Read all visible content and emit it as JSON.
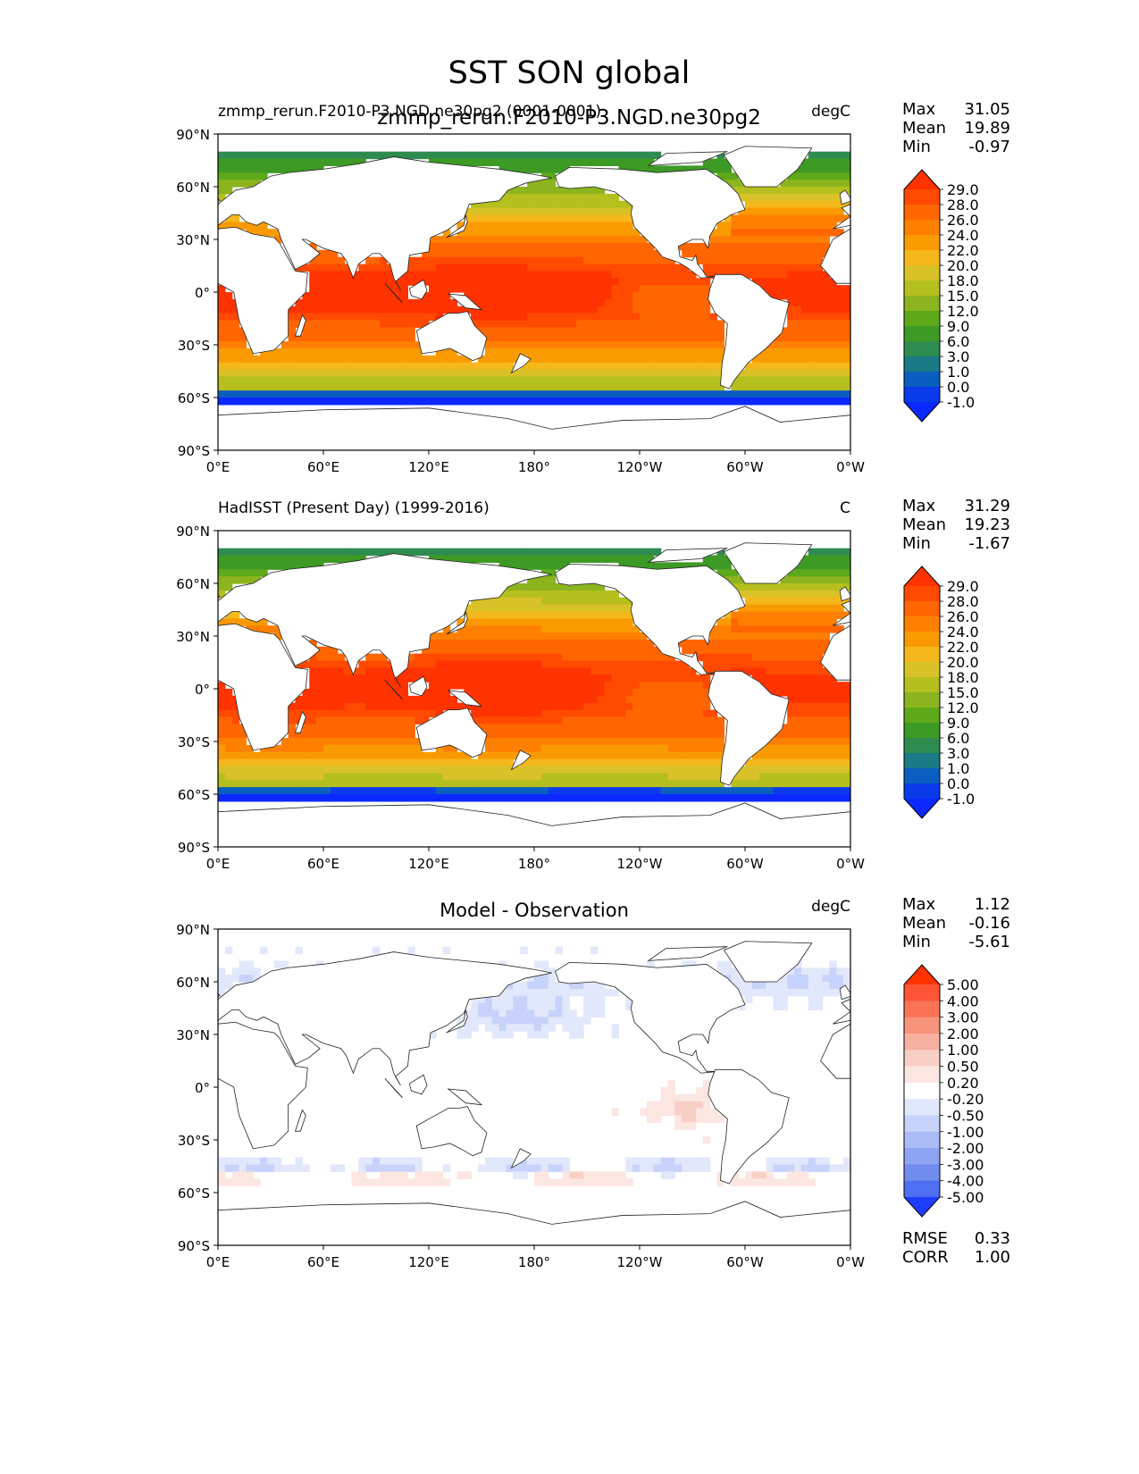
{
  "figure": {
    "title": "SST SON global",
    "overlay_title": "zmmp_rerun.F2010-P3.NGD.ne30pg2"
  },
  "axes": {
    "lat_ticks": [
      "90°N",
      "60°N",
      "30°N",
      "0°",
      "30°S",
      "60°S",
      "90°S"
    ],
    "lon_ticks": [
      "0°E",
      "60°E",
      "120°E",
      "180°",
      "120°W",
      "60°W",
      "0°W"
    ]
  },
  "chart_data": [
    {
      "type": "heatmap",
      "id": "test",
      "title_left": "zmmp_rerun.F2010-P3.NGD.ne30pg2 (0001-0001)",
      "title_center": "",
      "units": "degC",
      "stats": [
        {
          "label": "Max",
          "value": "31.05"
        },
        {
          "label": "Mean",
          "value": "19.89"
        },
        {
          "label": "Min",
          "value": "-0.97"
        }
      ],
      "colorbar": {
        "levels": [
          "29.0",
          "28.0",
          "26.0",
          "24.0",
          "22.0",
          "20.0",
          "18.0",
          "15.0",
          "12.0",
          "9.0",
          "6.0",
          "3.0",
          "1.0",
          "0.0",
          "-1.0"
        ],
        "colors": [
          "#ff3300",
          "#ff4a00",
          "#ff6600",
          "#ff8000",
          "#f99b00",
          "#f5b81c",
          "#d9c228",
          "#b5bf1e",
          "#8cb41e",
          "#5ea91a",
          "#3d9a24",
          "#2f8c50",
          "#1a7a86",
          "#0a5ebf",
          "#0a3bea",
          "#0a28ff"
        ]
      },
      "lat_range": [
        -90,
        90
      ],
      "lon_range": [
        0,
        360
      ],
      "field_kind": "sst"
    },
    {
      "type": "heatmap",
      "id": "ref",
      "title_left": "HadISST (Present Day) (1999-2016)",
      "title_center": "",
      "units": "C",
      "stats": [
        {
          "label": "Max",
          "value": "31.29"
        },
        {
          "label": "Mean",
          "value": "19.23"
        },
        {
          "label": "Min",
          "value": "-1.67"
        }
      ],
      "colorbar": {
        "levels": [
          "29.0",
          "28.0",
          "26.0",
          "24.0",
          "22.0",
          "20.0",
          "18.0",
          "15.0",
          "12.0",
          "9.0",
          "6.0",
          "3.0",
          "1.0",
          "0.0",
          "-1.0"
        ],
        "colors": [
          "#ff3300",
          "#ff4a00",
          "#ff6600",
          "#ff8000",
          "#f99b00",
          "#f5b81c",
          "#d9c228",
          "#b5bf1e",
          "#8cb41e",
          "#5ea91a",
          "#3d9a24",
          "#2f8c50",
          "#1a7a86",
          "#0a5ebf",
          "#0a3bea",
          "#0a28ff"
        ]
      },
      "lat_range": [
        -90,
        90
      ],
      "lon_range": [
        0,
        360
      ],
      "field_kind": "sst"
    },
    {
      "type": "heatmap",
      "id": "diff",
      "title_left": "",
      "title_center": "Model - Observation",
      "units": "degC",
      "stats": [
        {
          "label": "Max",
          "value": "1.12"
        },
        {
          "label": "Mean",
          "value": "-0.16"
        },
        {
          "label": "Min",
          "value": "-5.61"
        }
      ],
      "bottom_stats": [
        {
          "label": "RMSE",
          "value": "0.33"
        },
        {
          "label": "CORR",
          "value": "1.00"
        }
      ],
      "colorbar": {
        "levels": [
          "5.00",
          "4.00",
          "3.00",
          "2.00",
          "1.00",
          "0.50",
          "0.20",
          "-0.20",
          "-0.50",
          "-1.00",
          "-2.00",
          "-3.00",
          "-4.00",
          "-5.00"
        ],
        "colors": [
          "#ff3300",
          "#fd5535",
          "#fa7458",
          "#f7937a",
          "#f6b09f",
          "#f8cfc4",
          "#fbe6e1",
          "#ffffff",
          "#e2e8fb",
          "#c7d3fa",
          "#aabbf6",
          "#8ea4f2",
          "#728cee",
          "#4e6ff1",
          "#1e3cff"
        ]
      },
      "lat_range": [
        -90,
        90
      ],
      "lon_range": [
        0,
        360
      ],
      "field_kind": "diff"
    }
  ]
}
